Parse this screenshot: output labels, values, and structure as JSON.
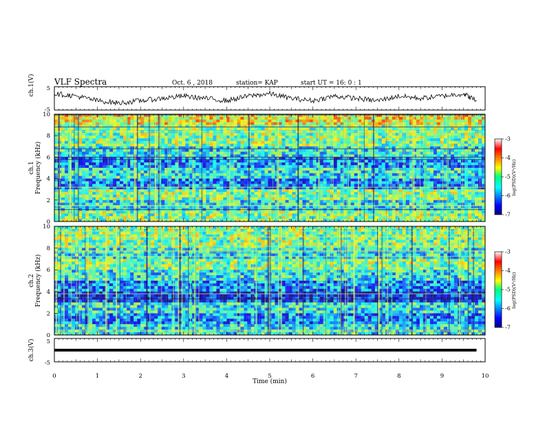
{
  "header": {
    "title": "VLF Spectra",
    "date": "Oct. 6 , 2018",
    "station": "station= KAP",
    "start": "start UT =  16: 0 : 1"
  },
  "axes": {
    "xlabel": "Time  (min)",
    "x_ticks": [
      "0",
      "1",
      "2",
      "3",
      "4",
      "5",
      "6",
      "7",
      "8",
      "9",
      "10"
    ],
    "ch1_wave_label": "ch.1(V)",
    "ch3_wave_label": "ch.3(V)",
    "wave_ticks": [
      "5",
      "-5"
    ],
    "ch1_freq_label": "ch.1",
    "ch2_freq_label": "ch.2",
    "freq_label": "Frequency  (kHz)",
    "freq_ticks": [
      "10",
      "8",
      "6",
      "4",
      "2",
      "0"
    ],
    "colorbar_label": "log(PSD)(V²/Hz)",
    "colorbar_ticks": [
      "-3",
      "-4",
      "-5",
      "-6",
      "-7"
    ]
  },
  "chart_data": [
    {
      "type": "line",
      "panel": "ch.1 waveform",
      "xlabel": "Time  (min)",
      "ylabel": "ch.1(V)",
      "xlim": [
        0,
        10
      ],
      "ylim": [
        -5,
        5
      ],
      "x": [
        0,
        0.5,
        1,
        1.5,
        2,
        2.5,
        3,
        3.5,
        4,
        4.5,
        5,
        5.5,
        6,
        6.5,
        7,
        7.5,
        8,
        8.5,
        9,
        9.5,
        9.8
      ],
      "y": [
        2,
        1,
        -1,
        -2,
        -1,
        0,
        1,
        0,
        -1,
        1,
        2,
        0,
        -1,
        1,
        0,
        -1,
        1,
        0,
        1,
        2,
        -1
      ]
    },
    {
      "type": "heatmap",
      "panel": "ch.1 spectrogram",
      "xlabel": "Time  (min)",
      "ylabel": "Frequency  (kHz)",
      "xlim": [
        0,
        10
      ],
      "ylim": [
        0,
        10
      ],
      "zlim": [
        -7,
        -3
      ],
      "zlabel": "log(PSD)(V²/Hz)",
      "freq_bands_khz": [
        0,
        1,
        2,
        3,
        4,
        5,
        6,
        7,
        8,
        9,
        10
      ],
      "band_mean_log_psd": [
        -5,
        -5.5,
        -5,
        -6,
        -5.5,
        -6,
        -5.5,
        -5,
        -5,
        -4.5
      ]
    },
    {
      "type": "heatmap",
      "panel": "ch.2 spectrogram",
      "xlabel": "Time  (min)",
      "ylabel": "Frequency  (kHz)",
      "xlim": [
        0,
        10
      ],
      "ylim": [
        0,
        10
      ],
      "zlim": [
        -7,
        -3
      ],
      "zlabel": "log(PSD)(V²/Hz)",
      "freq_bands_khz": [
        0,
        1,
        2,
        3,
        4,
        5,
        6,
        7,
        8,
        9,
        10
      ],
      "band_mean_log_psd": [
        -5.5,
        -6,
        -5.5,
        -6.5,
        -6,
        -5.5,
        -5,
        -5.5,
        -5,
        -5
      ]
    },
    {
      "type": "line",
      "panel": "ch.3 waveform",
      "xlabel": "Time  (min)",
      "ylabel": "ch.3(V)",
      "xlim": [
        0,
        10
      ],
      "ylim": [
        -5,
        5
      ],
      "x": [
        0,
        9.8
      ],
      "y": [
        0,
        0
      ]
    }
  ]
}
